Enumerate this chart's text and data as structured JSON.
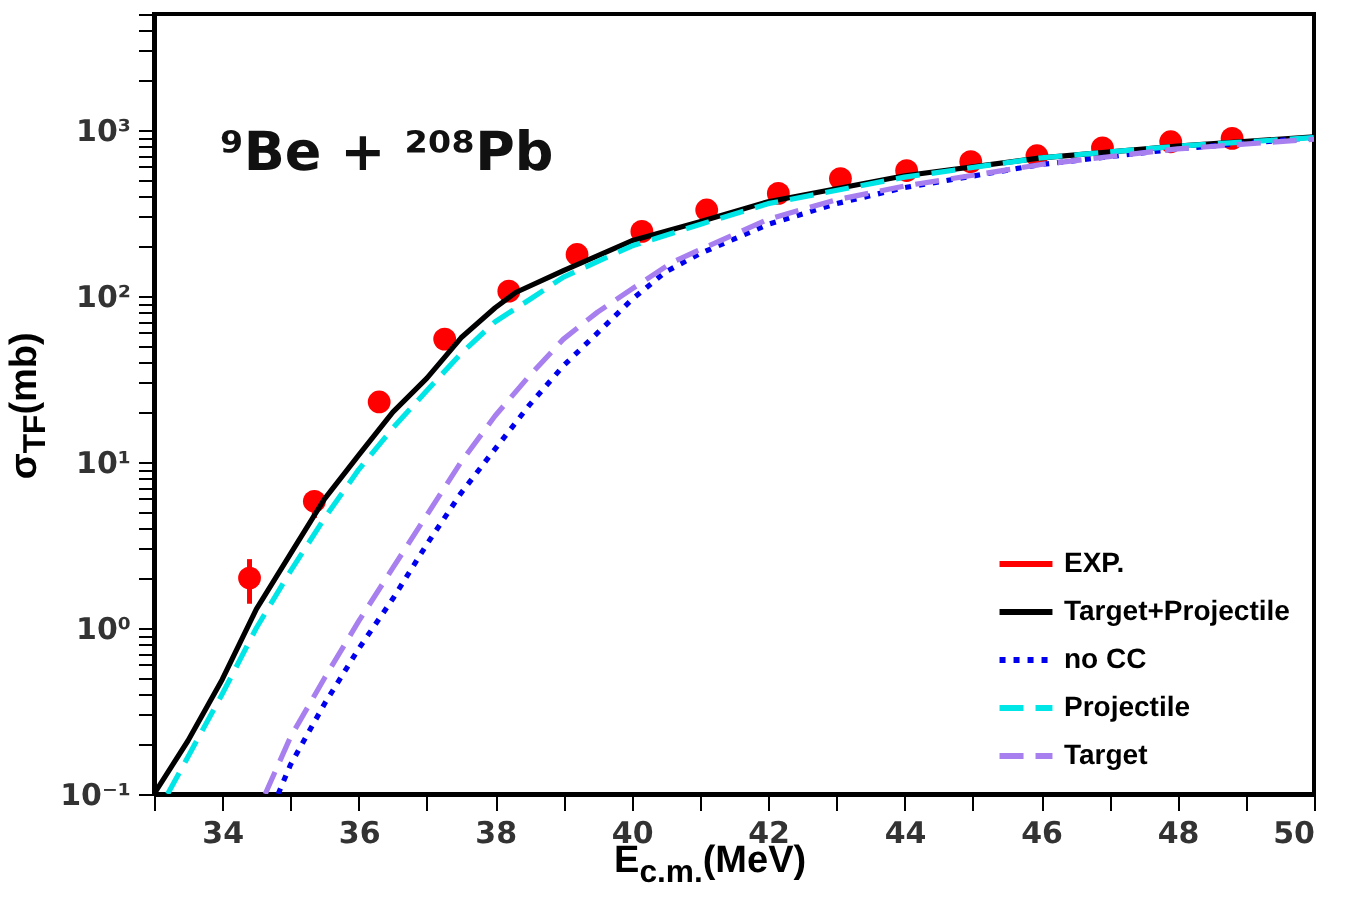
{
  "chart_data": {
    "type": "line",
    "xlabel": "E$_{c.m.}$(MeV)",
    "ylabel": "σ$_{TF}$(mb)",
    "annotations": [
      "⁹Be + ²⁰⁸Pb"
    ],
    "xlim": [
      33,
      50
    ],
    "ylim": [
      0.1,
      5000
    ],
    "log": "y",
    "grid": false,
    "legend": "bottom right",
    "xticks": [
      {
        "value": 33,
        "label": null
      },
      34,
      {
        "value": 35,
        "label": null
      },
      36,
      {
        "value": 37,
        "label": null
      },
      38,
      {
        "value": 39,
        "label": null
      },
      40,
      {
        "value": 41,
        "label": null
      },
      42,
      {
        "value": 43,
        "label": null
      },
      44,
      {
        "value": 45,
        "label": null
      },
      46,
      {
        "value": 47,
        "label": null
      },
      48,
      {
        "value": 49,
        "label": null
      },
      50
    ],
    "yticks": [
      {
        "value": 0.1,
        "label": "10⁻¹"
      },
      {
        "value": 0.2,
        "label": null
      },
      {
        "value": 0.3,
        "label": null
      },
      {
        "value": 0.4,
        "label": null
      },
      {
        "value": 0.5,
        "label": null
      },
      {
        "value": 0.6,
        "label": null
      },
      {
        "value": 0.7,
        "label": null
      },
      {
        "value": 0.8,
        "label": null
      },
      {
        "value": 0.9,
        "label": null
      },
      {
        "value": 1,
        "label": "10⁰"
      },
      {
        "value": 2,
        "label": null
      },
      {
        "value": 3,
        "label": null
      },
      {
        "value": 4,
        "label": null
      },
      {
        "value": 5,
        "label": null
      },
      {
        "value": 6,
        "label": null
      },
      {
        "value": 7,
        "label": null
      },
      {
        "value": 8,
        "label": null
      },
      {
        "value": 9,
        "label": null
      },
      {
        "value": 10,
        "label": "10¹"
      },
      {
        "value": 20,
        "label": null
      },
      {
        "value": 30,
        "label": null
      },
      {
        "value": 40,
        "label": null
      },
      {
        "value": 50,
        "label": null
      },
      {
        "value": 60,
        "label": null
      },
      {
        "value": 70,
        "label": null
      },
      {
        "value": 80,
        "label": null
      },
      {
        "value": 90,
        "label": null
      },
      {
        "value": 100,
        "label": "10²"
      },
      {
        "value": 200,
        "label": null
      },
      {
        "value": 300,
        "label": null
      },
      {
        "value": 400,
        "label": null
      },
      {
        "value": 500,
        "label": null
      },
      {
        "value": 600,
        "label": null
      },
      {
        "value": 700,
        "label": null
      },
      {
        "value": 800,
        "label": null
      },
      {
        "value": 900,
        "label": null
      },
      {
        "value": 1000,
        "label": "10³"
      },
      {
        "value": 2000,
        "label": null
      },
      {
        "value": 3000,
        "label": null
      },
      {
        "value": 4000,
        "label": null
      },
      {
        "value": 5000,
        "label": null
      }
    ],
    "series": [
      {
        "name": "EXP.",
        "type": "scatter",
        "marker": "circle",
        "color": "#ff0000",
        "x": [
          34.4,
          35.35,
          36.3,
          37.26,
          38.2,
          39.2,
          40.15,
          41.1,
          42.15,
          43.06,
          44.03,
          44.97,
          45.94,
          46.9,
          47.9,
          48.8
        ],
        "values": [
          2.0,
          5.8,
          23,
          55,
          107,
          178,
          245,
          330,
          415,
          510,
          570,
          645,
          700,
          780,
          850,
          890
        ],
        "errors": [
          [
            1.4,
            2.6
          ],
          [
            4.6,
            6.6
          ],
          null,
          null,
          null,
          null,
          null,
          null,
          null,
          null,
          null,
          null,
          null,
          null,
          null,
          null
        ]
      },
      {
        "name": "Target+Projectile",
        "line_style": "solid",
        "color": "#000000",
        "x": [
          33,
          33.5,
          34,
          34.5,
          35,
          35.5,
          36,
          36.5,
          37,
          37.5,
          38,
          38.3,
          39,
          40,
          41,
          42,
          44,
          46,
          48,
          50
        ],
        "values": [
          0.1,
          0.21,
          0.49,
          1.3,
          2.8,
          6,
          11,
          20,
          32,
          56,
          85,
          105,
          142,
          215,
          280,
          370,
          530,
          680,
          800,
          910
        ]
      },
      {
        "name": "no CC",
        "line_style": "dotted",
        "color": "#0000ee",
        "x": [
          34.82,
          35,
          35.5,
          36,
          36.5,
          37,
          37.5,
          38,
          38.5,
          39,
          39.5,
          40,
          40.5,
          41,
          42,
          43,
          44,
          46,
          48,
          50
        ],
        "values": [
          0.1,
          0.15,
          0.35,
          0.75,
          1.5,
          3.2,
          6.5,
          12,
          22,
          38,
          60,
          95,
          140,
          180,
          270,
          360,
          450,
          620,
          770,
          900
        ]
      },
      {
        "name": "Projectile",
        "line_style": "dashed",
        "color": "#00e5e5",
        "x": [
          33.2,
          34,
          34.5,
          35,
          35.5,
          36,
          36.5,
          37,
          37.5,
          38,
          38.5,
          39,
          40,
          41,
          42,
          44,
          46,
          48,
          50
        ],
        "values": [
          0.1,
          0.4,
          1.0,
          2.2,
          4.6,
          9,
          16,
          27,
          45,
          70,
          95,
          130,
          200,
          270,
          360,
          520,
          680,
          800,
          900
        ]
      },
      {
        "name": "Target",
        "line_style": "dashed",
        "color": "#a77fef",
        "x": [
          34.63,
          35,
          35.5,
          36,
          36.5,
          37,
          37.5,
          38,
          38.5,
          39,
          39.5,
          40,
          40.6,
          41,
          42,
          43,
          44,
          46,
          48,
          50
        ],
        "values": [
          0.1,
          0.22,
          0.5,
          1.1,
          2.3,
          4.8,
          10,
          19,
          33,
          55,
          80,
          110,
          160,
          190,
          290,
          380,
          460,
          620,
          770,
          880
        ]
      }
    ]
  }
}
